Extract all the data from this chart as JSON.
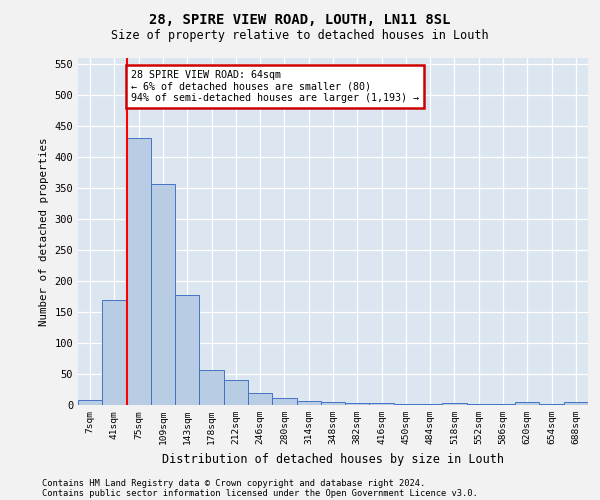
{
  "title1": "28, SPIRE VIEW ROAD, LOUTH, LN11 8SL",
  "title2": "Size of property relative to detached houses in Louth",
  "xlabel": "Distribution of detached houses by size in Louth",
  "ylabel": "Number of detached properties",
  "bar_values": [
    8,
    170,
    430,
    356,
    178,
    57,
    40,
    20,
    12,
    6,
    5,
    4,
    4,
    1,
    1,
    4,
    1,
    1,
    5,
    1,
    5
  ],
  "x_ticks": [
    "7sqm",
    "41sqm",
    "75sqm",
    "109sqm",
    "143sqm",
    "178sqm",
    "212sqm",
    "246sqm",
    "280sqm",
    "314sqm",
    "348sqm",
    "382sqm",
    "416sqm",
    "450sqm",
    "484sqm",
    "518sqm",
    "552sqm",
    "586sqm",
    "620sqm",
    "654sqm",
    "688sqm"
  ],
  "ylim": [
    0,
    560
  ],
  "yticks": [
    0,
    50,
    100,
    150,
    200,
    250,
    300,
    350,
    400,
    450,
    500,
    550
  ],
  "bar_color": "#b8cce4",
  "bar_edge_color": "#4472c4",
  "annotation_text": "28 SPIRE VIEW ROAD: 64sqm\n← 6% of detached houses are smaller (80)\n94% of semi-detached houses are larger (1,193) →",
  "annotation_box_color": "#ffffff",
  "annotation_box_edge": "#cc0000",
  "bg_color": "#dce6f1",
  "grid_color": "#ffffff",
  "fig_bg_color": "#f2f2f2",
  "footnote1": "Contains HM Land Registry data © Crown copyright and database right 2024.",
  "footnote2": "Contains public sector information licensed under the Open Government Licence v3.0."
}
